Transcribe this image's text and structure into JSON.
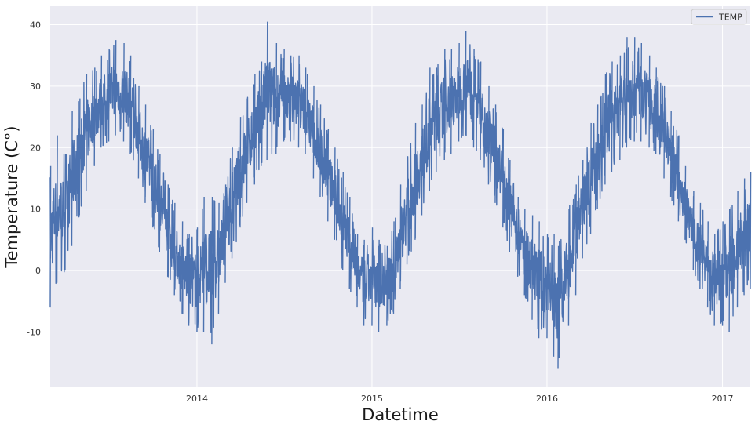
{
  "chart_data": {
    "type": "line",
    "title": "",
    "xlabel": "Datetime",
    "ylabel": "Temperature (C°)",
    "x_range": [
      "2013-03-01",
      "2017-02-28"
    ],
    "ylim": [
      -19,
      43
    ],
    "grid": true,
    "legend_position": "top-right",
    "x_ticks": [
      {
        "label": "2014",
        "date": "2014-01-01"
      },
      {
        "label": "2015",
        "date": "2015-01-01"
      },
      {
        "label": "2016",
        "date": "2016-01-01"
      },
      {
        "label": "2017",
        "date": "2017-01-01"
      }
    ],
    "y_ticks": [
      -10,
      0,
      10,
      20,
      30,
      40
    ],
    "series": [
      {
        "name": "TEMP",
        "color": "#4c72b0",
        "points": [
          {
            "date": "2013-03-01",
            "low": -6.0,
            "high": 17.0
          },
          {
            "date": "2013-03-15",
            "low": -2.0,
            "high": 22.0
          },
          {
            "date": "2013-04-01",
            "low": 0.0,
            "high": 19.0
          },
          {
            "date": "2013-04-15",
            "low": 4.0,
            "high": 26.0
          },
          {
            "date": "2013-05-01",
            "low": 9.0,
            "high": 28.0
          },
          {
            "date": "2013-05-15",
            "low": 13.0,
            "high": 32.0
          },
          {
            "date": "2013-06-01",
            "low": 17.0,
            "high": 33.0
          },
          {
            "date": "2013-06-15",
            "low": 20.0,
            "high": 35.0
          },
          {
            "date": "2013-07-01",
            "low": 21.0,
            "high": 36.0
          },
          {
            "date": "2013-07-15",
            "low": 22.0,
            "high": 37.5
          },
          {
            "date": "2013-08-01",
            "low": 21.0,
            "high": 37.0
          },
          {
            "date": "2013-08-15",
            "low": 19.0,
            "high": 35.0
          },
          {
            "date": "2013-09-01",
            "low": 15.0,
            "high": 30.0
          },
          {
            "date": "2013-09-15",
            "low": 11.0,
            "high": 27.0
          },
          {
            "date": "2013-10-01",
            "low": 7.0,
            "high": 23.0
          },
          {
            "date": "2013-10-15",
            "low": 3.0,
            "high": 19.0
          },
          {
            "date": "2013-11-01",
            "low": -1.0,
            "high": 14.0
          },
          {
            "date": "2013-11-15",
            "low": -4.0,
            "high": 11.0
          },
          {
            "date": "2013-12-01",
            "low": -7.0,
            "high": 8.0
          },
          {
            "date": "2013-12-15",
            "low": -9.0,
            "high": 6.0
          },
          {
            "date": "2014-01-01",
            "low": -10.0,
            "high": 7.0
          },
          {
            "date": "2014-01-15",
            "low": -10.0,
            "high": 12.0
          },
          {
            "date": "2014-02-01",
            "low": -12.0,
            "high": 12.0
          },
          {
            "date": "2014-02-15",
            "low": -7.0,
            "high": 11.0
          },
          {
            "date": "2014-03-01",
            "low": -2.0,
            "high": 14.0
          },
          {
            "date": "2014-03-15",
            "low": 2.0,
            "high": 20.0
          },
          {
            "date": "2014-04-01",
            "low": 7.0,
            "high": 25.0
          },
          {
            "date": "2014-04-15",
            "low": 11.0,
            "high": 28.0
          },
          {
            "date": "2014-05-01",
            "low": 14.0,
            "high": 32.0
          },
          {
            "date": "2014-05-15",
            "low": 17.0,
            "high": 34.0
          },
          {
            "date": "2014-05-27",
            "low": 18.0,
            "high": 40.5
          },
          {
            "date": "2014-06-15",
            "low": 19.0,
            "high": 37.0
          },
          {
            "date": "2014-07-01",
            "low": 21.0,
            "high": 36.0
          },
          {
            "date": "2014-07-15",
            "low": 21.0,
            "high": 35.0
          },
          {
            "date": "2014-08-01",
            "low": 20.0,
            "high": 35.0
          },
          {
            "date": "2014-08-15",
            "low": 19.0,
            "high": 33.0
          },
          {
            "date": "2014-09-01",
            "low": 15.0,
            "high": 30.0
          },
          {
            "date": "2014-09-15",
            "low": 12.0,
            "high": 27.0
          },
          {
            "date": "2014-10-01",
            "low": 8.0,
            "high": 23.0
          },
          {
            "date": "2014-10-15",
            "low": 5.0,
            "high": 20.0
          },
          {
            "date": "2014-11-01",
            "low": 0.0,
            "high": 16.0
          },
          {
            "date": "2014-11-15",
            "low": -3.0,
            "high": 12.0
          },
          {
            "date": "2014-12-01",
            "low": -6.0,
            "high": 6.0
          },
          {
            "date": "2014-12-15",
            "low": -9.0,
            "high": 5.0
          },
          {
            "date": "2015-01-01",
            "low": -9.0,
            "high": 7.0
          },
          {
            "date": "2015-01-15",
            "low": -10.0,
            "high": 5.0
          },
          {
            "date": "2015-02-01",
            "low": -9.0,
            "high": 4.0
          },
          {
            "date": "2015-02-15",
            "low": -7.0,
            "high": 8.0
          },
          {
            "date": "2015-03-01",
            "low": -3.0,
            "high": 14.0
          },
          {
            "date": "2015-03-15",
            "low": 1.0,
            "high": 18.0
          },
          {
            "date": "2015-04-01",
            "low": 5.0,
            "high": 24.0
          },
          {
            "date": "2015-04-15",
            "low": 9.0,
            "high": 27.0
          },
          {
            "date": "2015-05-01",
            "low": 13.0,
            "high": 33.0
          },
          {
            "date": "2015-05-15",
            "low": 16.0,
            "high": 33.0
          },
          {
            "date": "2015-06-01",
            "low": 18.0,
            "high": 36.0
          },
          {
            "date": "2015-06-15",
            "low": 19.0,
            "high": 36.0
          },
          {
            "date": "2015-07-01",
            "low": 21.0,
            "high": 37.0
          },
          {
            "date": "2015-07-15",
            "low": 22.0,
            "high": 39.0
          },
          {
            "date": "2015-08-01",
            "low": 20.0,
            "high": 36.0
          },
          {
            "date": "2015-08-15",
            "low": 18.0,
            "high": 34.0
          },
          {
            "date": "2015-09-01",
            "low": 14.0,
            "high": 30.0
          },
          {
            "date": "2015-09-15",
            "low": 11.0,
            "high": 27.0
          },
          {
            "date": "2015-10-01",
            "low": 7.0,
            "high": 23.0
          },
          {
            "date": "2015-10-15",
            "low": 3.0,
            "high": 18.0
          },
          {
            "date": "2015-11-01",
            "low": -1.0,
            "high": 12.0
          },
          {
            "date": "2015-11-15",
            "low": -4.0,
            "high": 10.0
          },
          {
            "date": "2015-12-01",
            "low": -8.0,
            "high": 9.0
          },
          {
            "date": "2015-12-15",
            "low": -11.0,
            "high": 8.0
          },
          {
            "date": "2016-01-01",
            "low": -11.0,
            "high": 6.0
          },
          {
            "date": "2016-01-15",
            "low": -14.0,
            "high": 6.0
          },
          {
            "date": "2016-01-24",
            "low": -16.0,
            "high": 4.0
          },
          {
            "date": "2016-02-15",
            "low": -9.0,
            "high": 10.0
          },
          {
            "date": "2016-03-01",
            "low": -4.0,
            "high": 14.0
          },
          {
            "date": "2016-03-15",
            "low": 2.0,
            "high": 18.0
          },
          {
            "date": "2016-04-01",
            "low": 6.0,
            "high": 24.0
          },
          {
            "date": "2016-04-15",
            "low": 10.0,
            "high": 27.0
          },
          {
            "date": "2016-05-01",
            "low": 14.0,
            "high": 32.0
          },
          {
            "date": "2016-05-15",
            "low": 16.0,
            "high": 34.0
          },
          {
            "date": "2016-06-01",
            "low": 18.0,
            "high": 35.0
          },
          {
            "date": "2016-06-15",
            "low": 20.0,
            "high": 38.0
          },
          {
            "date": "2016-07-01",
            "low": 21.0,
            "high": 38.0
          },
          {
            "date": "2016-07-15",
            "low": 21.0,
            "high": 37.0
          },
          {
            "date": "2016-08-01",
            "low": 20.0,
            "high": 35.0
          },
          {
            "date": "2016-08-15",
            "low": 19.0,
            "high": 33.0
          },
          {
            "date": "2016-09-01",
            "low": 15.0,
            "high": 30.0
          },
          {
            "date": "2016-09-15",
            "low": 12.0,
            "high": 26.0
          },
          {
            "date": "2016-10-01",
            "low": 8.0,
            "high": 22.0
          },
          {
            "date": "2016-10-15",
            "low": 5.0,
            "high": 17.0
          },
          {
            "date": "2016-11-01",
            "low": 0.0,
            "high": 13.0
          },
          {
            "date": "2016-11-15",
            "low": -3.0,
            "high": 11.0
          },
          {
            "date": "2016-12-01",
            "low": -6.0,
            "high": 8.0
          },
          {
            "date": "2016-12-15",
            "low": -9.0,
            "high": 6.0
          },
          {
            "date": "2017-01-01",
            "low": -9.0,
            "high": 8.0
          },
          {
            "date": "2017-01-15",
            "low": -10.0,
            "high": 10.0
          },
          {
            "date": "2017-02-01",
            "low": -6.0,
            "high": 13.0
          },
          {
            "date": "2017-02-15",
            "low": -4.0,
            "high": 15.0
          },
          {
            "date": "2017-02-28",
            "low": -3.0,
            "high": 16.0
          }
        ]
      }
    ]
  },
  "colors": {
    "plot_background": "#eaeaf2",
    "grid": "#ffffff",
    "line": "#4c72b0"
  }
}
